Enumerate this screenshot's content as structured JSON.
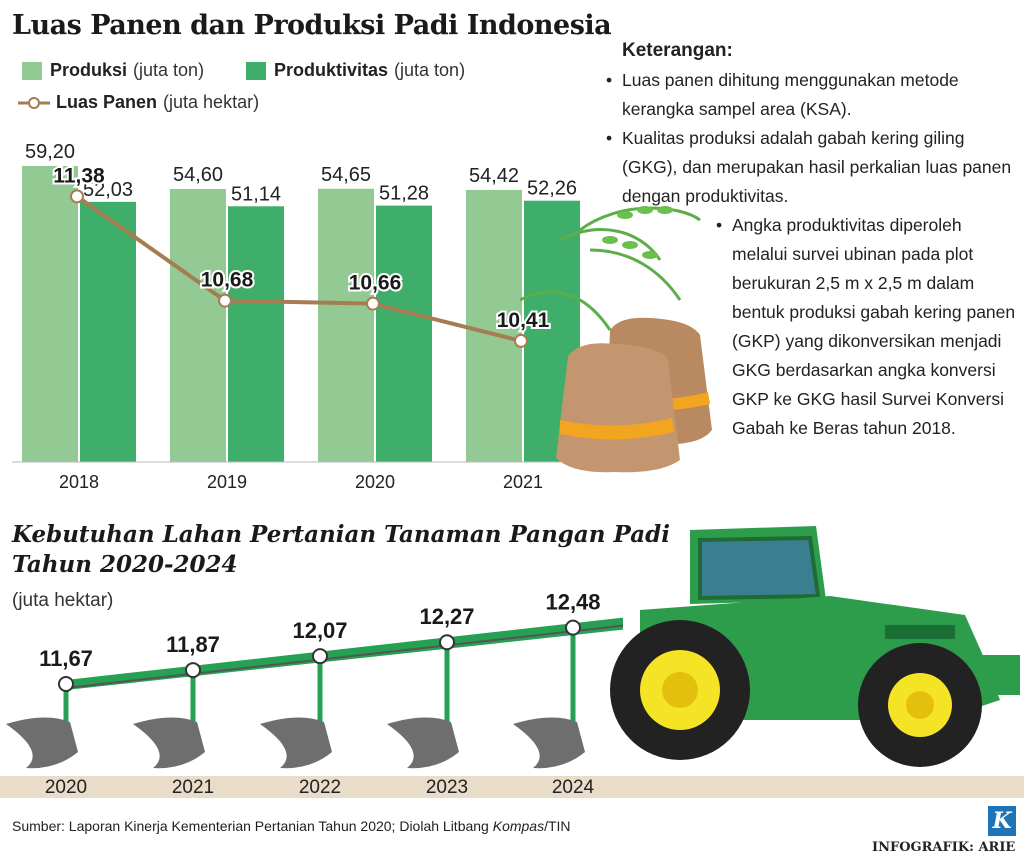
{
  "title": "Luas Panen dan Produksi Padi Indonesia",
  "legend": {
    "produksi": {
      "label": "Produksi",
      "unit": "(juta ton)"
    },
    "produktivitas": {
      "label": "Produktivitas",
      "unit": "(juta ton)"
    },
    "luas_panen": {
      "label": "Luas Panen",
      "unit": "(juta hektar)"
    }
  },
  "colors": {
    "produksi": "#93c993",
    "produktivitas": "#3fae6a",
    "luas_panen": "#a67c52",
    "ground": "#e9dcc9",
    "plow_line": "#26a154",
    "plow": "#6e6e6e"
  },
  "chart_data": [
    {
      "type": "bar",
      "categories": [
        "2018",
        "2019",
        "2020",
        "2021"
      ],
      "series": [
        {
          "name": "Produksi (juta ton)",
          "values": [
            59.2,
            54.6,
            54.65,
            54.42
          ],
          "labels": [
            "59,20",
            "54,60",
            "54,65",
            "54,42"
          ]
        },
        {
          "name": "Produktivitas (juta ton)",
          "values": [
            52.03,
            51.14,
            51.28,
            52.26
          ],
          "labels": [
            "52,03",
            "51,14",
            "51,28",
            "52,26"
          ]
        },
        {
          "name": "Luas Panen (juta hektar)",
          "type": "line",
          "values": [
            11.38,
            10.68,
            10.66,
            10.41
          ],
          "labels": [
            "11,38",
            "10,68",
            "10,66",
            "10,41"
          ]
        }
      ]
    },
    {
      "type": "line",
      "title": "Kebutuhan Lahan Pertanian Tanaman Pangan Padi Tahun 2020-2024",
      "ylabel": "(juta hektar)",
      "categories": [
        "2020",
        "2021",
        "2022",
        "2023",
        "2024"
      ],
      "values": [
        11.67,
        11.87,
        12.07,
        12.27,
        12.48
      ],
      "labels": [
        "11,67",
        "11,87",
        "12,07",
        "12,27",
        "12,48"
      ]
    }
  ],
  "notes": {
    "title": "Keterangan:",
    "items": [
      "Luas panen dihitung menggunakan metode kerangka sampel area (KSA).",
      "Kualitas produksi adalah gabah kering giling (GKG), dan merupakan hasil perkalian luas panen dengan produktivitas.",
      "Angka produktivitas diperoleh melalui survei ubinan pada plot berukuran 2,5 m x 2,5 m dalam bentuk produksi gabah kering panen (GKP) yang dikonversikan menjadi GKG berdasarkan angka konversi GKP ke GKG hasil Survei Konversi Gabah ke Beras tahun 2018."
    ]
  },
  "section2": {
    "title_line1": "Kebutuhan Lahan Pertanian Tanaman Pangan Padi",
    "title_line2": "Tahun 2020-2024",
    "unit": "(juta hektar)"
  },
  "source": {
    "prefix": "Sumber: Laporan Kinerja Kementerian Pertanian Tahun 2020; Diolah Litbang ",
    "italic": "Kompas",
    "suffix": "/TIN"
  },
  "credit": "INFOGRAFIK: ARIE",
  "logo_letter": "K"
}
